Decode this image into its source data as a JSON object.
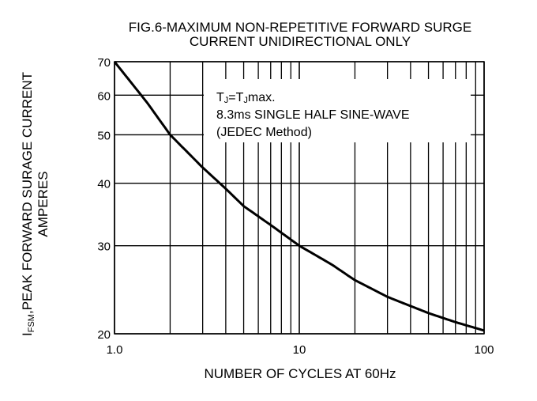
{
  "chart_data": {
    "type": "line",
    "title_lines": [
      "FIG.6-MAXIMUM NON-REPETITIVE FORWARD SURGE",
      "CURRENT UNIDIRECTIONAL ONLY"
    ],
    "xlabel": "NUMBER OF CYCLES AT 60Hz",
    "ylabel_lines": [
      "I FSM,PEAK FORWARD SURAGE CURRENT",
      "AMPERES"
    ],
    "ylabel_prefix_main": "I",
    "ylabel_prefix_sub": "FSM",
    "ylabel_rest": ",PEAK FORWARD SURAGE CURRENT",
    "ylabel_line2": "AMPERES",
    "x_scale": "log",
    "y_scale": "log",
    "xlim": [
      1,
      100
    ],
    "ylim": [
      20,
      70
    ],
    "x_ticks": [
      {
        "value": 1,
        "label": "1.0"
      },
      {
        "value": 10,
        "label": "10"
      },
      {
        "value": 100,
        "label": "100"
      }
    ],
    "y_ticks": [
      {
        "value": 20,
        "label": "20"
      },
      {
        "value": 30,
        "label": "30"
      },
      {
        "value": 40,
        "label": "40"
      },
      {
        "value": 50,
        "label": "50"
      },
      {
        "value": 60,
        "label": "60"
      },
      {
        "value": 70,
        "label": "70"
      }
    ],
    "grid": true,
    "annotation_lines": [
      "T J=T Jmax.",
      "8.3ms SINGLE HALF SINE-WAVE",
      "(JEDEC Method)"
    ],
    "annotation_line1_parts": [
      "T",
      "J",
      "=T",
      "J",
      "max."
    ],
    "annotation_line2": "8.3ms SINGLE HALF SINE-WAVE",
    "annotation_line3": "(JEDEC Method)",
    "series": [
      {
        "x": [
          1,
          1.5,
          2,
          3,
          4,
          5,
          7,
          10,
          15,
          20,
          30,
          50,
          70,
          100
        ],
        "y": [
          70,
          58,
          50,
          43,
          39,
          36,
          33,
          30,
          27.5,
          25.6,
          23.7,
          22,
          21.1,
          20.3
        ]
      }
    ]
  }
}
